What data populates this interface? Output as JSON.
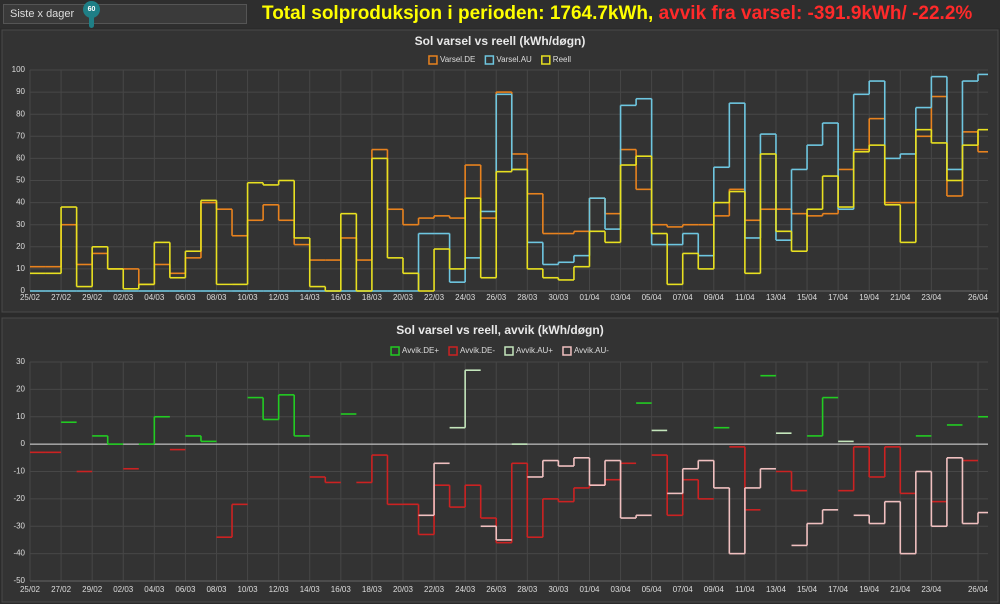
{
  "header": {
    "period_label": "Siste x dager",
    "slider_value": 60,
    "total": "Total solproduksjon i perioden: 1764.7kWh,",
    "deviation": "avvik fra varsel: -391.9kWh/ -22.2%"
  },
  "chart_data": [
    {
      "type": "line",
      "step": true,
      "title": "Sol varsel vs reell (kWh/døgn)",
      "categories": [
        "25/02",
        null,
        "27/02",
        null,
        "29/02",
        null,
        "02/03",
        null,
        "04/03",
        null,
        "06/03",
        null,
        "08/03",
        null,
        "10/03",
        null,
        "12/03",
        null,
        "14/03",
        null,
        "16/03",
        null,
        "18/03",
        null,
        "20/03",
        null,
        "22/03",
        null,
        "24/03",
        null,
        "26/03",
        null,
        "28/03",
        null,
        "30/03",
        null,
        "01/04",
        null,
        "03/04",
        null,
        "05/04",
        null,
        "07/04",
        null,
        "09/04",
        null,
        "11/04",
        null,
        "13/04",
        null,
        "15/04",
        null,
        "17/04",
        null,
        "19/04",
        null,
        "21/04",
        null,
        "23/04",
        null,
        null,
        "26/04"
      ],
      "series": [
        {
          "name": "Varsel.DE",
          "color": "#e8821e",
          "values": [
            11,
            11,
            30,
            12,
            17,
            10,
            10,
            3,
            12,
            8,
            15,
            40,
            37,
            25,
            32,
            39,
            32,
            21,
            14,
            14,
            24,
            14,
            64,
            37,
            30,
            33,
            34,
            33,
            57,
            33,
            90,
            62,
            44,
            26,
            26,
            27,
            42,
            35,
            64,
            46,
            30,
            29,
            30,
            30,
            34,
            46,
            32,
            37,
            37,
            35,
            34,
            35,
            55,
            64,
            78,
            40,
            40,
            70,
            88,
            43,
            72,
            63
          ]
        },
        {
          "name": "Varsel.AU",
          "color": "#6ec6e0",
          "values": [
            0,
            0,
            0,
            0,
            0,
            0,
            0,
            0,
            0,
            0,
            0,
            0,
            0,
            0,
            0,
            0,
            0,
            0,
            0,
            0,
            0,
            0,
            0,
            0,
            0,
            26,
            26,
            4,
            15,
            36,
            89,
            55,
            22,
            12,
            13,
            16,
            42,
            28,
            84,
            87,
            21,
            21,
            26,
            16,
            56,
            85,
            24,
            71,
            23,
            55,
            66,
            76,
            37,
            89,
            95,
            60,
            62,
            83,
            97,
            55,
            95,
            98
          ]
        },
        {
          "name": "Reell",
          "color": "#e8e020",
          "values": [
            8,
            8,
            38,
            2,
            20,
            10,
            1,
            3,
            22,
            6,
            18,
            41,
            3,
            3,
            49,
            48,
            50,
            24,
            2,
            0,
            35,
            0,
            60,
            15,
            8,
            0,
            19,
            10,
            42,
            6,
            54,
            55,
            10,
            6,
            5,
            11,
            27,
            22,
            57,
            61,
            26,
            3,
            17,
            10,
            40,
            45,
            8,
            62,
            27,
            18,
            37,
            52,
            38,
            63,
            66,
            39,
            22,
            73,
            67,
            50,
            66,
            73
          ]
        }
      ],
      "ylim": [
        0,
        100
      ],
      "yticks": [
        0,
        10,
        20,
        30,
        40,
        50,
        60,
        70,
        80,
        90,
        100
      ],
      "grid": true
    },
    {
      "type": "line",
      "step": true,
      "title": "Sol varsel vs reell, avvik (kWh/døgn)",
      "categories": [
        "25/02",
        null,
        "27/02",
        null,
        "29/02",
        null,
        "02/03",
        null,
        "04/03",
        null,
        "06/03",
        null,
        "08/03",
        null,
        "10/03",
        null,
        "12/03",
        null,
        "14/03",
        null,
        "16/03",
        null,
        "18/03",
        null,
        "20/03",
        null,
        "22/03",
        null,
        "24/03",
        null,
        "26/03",
        null,
        "28/03",
        null,
        "30/03",
        null,
        "01/04",
        null,
        "03/04",
        null,
        "05/04",
        null,
        "07/04",
        null,
        "09/04",
        null,
        "11/04",
        null,
        "13/04",
        null,
        "15/04",
        null,
        "17/04",
        null,
        "19/04",
        null,
        "21/04",
        null,
        "23/04",
        null,
        null,
        "26/04"
      ],
      "series": [
        {
          "name": "Avvik.DE+",
          "color": "#22cc22",
          "values": [
            null,
            null,
            8,
            null,
            3,
            0,
            null,
            0,
            10,
            null,
            3,
            1,
            null,
            null,
            17,
            9,
            18,
            3,
            null,
            null,
            11,
            null,
            null,
            null,
            null,
            null,
            null,
            null,
            null,
            null,
            null,
            null,
            null,
            null,
            null,
            null,
            null,
            null,
            null,
            15,
            null,
            null,
            null,
            null,
            6,
            null,
            null,
            25,
            null,
            null,
            3,
            17,
            null,
            null,
            null,
            null,
            null,
            3,
            null,
            7,
            null,
            10
          ]
        },
        {
          "name": "Avvik.DE-",
          "color": "#cc2222",
          "values": [
            -3,
            -3,
            null,
            -10,
            null,
            null,
            -9,
            null,
            null,
            -2,
            null,
            null,
            -34,
            -22,
            null,
            null,
            null,
            null,
            -12,
            -14,
            null,
            -14,
            -4,
            -22,
            -22,
            -33,
            -15,
            -23,
            -15,
            -27,
            -36,
            -7,
            -34,
            -20,
            -21,
            -16,
            -15,
            -13,
            -7,
            null,
            -4,
            -26,
            -13,
            -20,
            null,
            -1,
            -24,
            null,
            -10,
            -17,
            null,
            null,
            -17,
            -1,
            -12,
            -1,
            -18,
            null,
            -21,
            null,
            -6,
            null
          ]
        },
        {
          "name": "Avvik.AU+",
          "color": "#c4e6bc",
          "values": [
            null,
            null,
            null,
            null,
            null,
            null,
            null,
            null,
            null,
            null,
            null,
            null,
            null,
            null,
            null,
            null,
            null,
            null,
            null,
            null,
            null,
            null,
            null,
            null,
            null,
            null,
            null,
            6,
            27,
            null,
            null,
            0,
            null,
            null,
            null,
            null,
            null,
            null,
            null,
            null,
            5,
            null,
            null,
            null,
            null,
            null,
            null,
            null,
            4,
            null,
            null,
            null,
            1,
            null,
            null,
            null,
            null,
            null,
            null,
            null,
            null,
            null
          ]
        },
        {
          "name": "Avvik.AU-",
          "color": "#f0c0c0",
          "values": [
            null,
            null,
            null,
            null,
            null,
            null,
            null,
            null,
            null,
            null,
            null,
            null,
            null,
            null,
            null,
            null,
            null,
            null,
            null,
            null,
            null,
            null,
            null,
            null,
            null,
            -26,
            -7,
            null,
            null,
            -30,
            -35,
            null,
            -12,
            -6,
            -8,
            -5,
            -15,
            -6,
            -27,
            -26,
            null,
            -18,
            -9,
            -6,
            -16,
            -40,
            -16,
            -9,
            null,
            -37,
            -29,
            -24,
            null,
            -26,
            -29,
            -21,
            -40,
            -10,
            -30,
            -5,
            -29,
            -25
          ]
        }
      ],
      "ylim": [
        -50,
        30
      ],
      "yticks": [
        -50,
        -40,
        -30,
        -20,
        -10,
        0,
        10,
        20,
        30
      ],
      "grid": true
    }
  ]
}
